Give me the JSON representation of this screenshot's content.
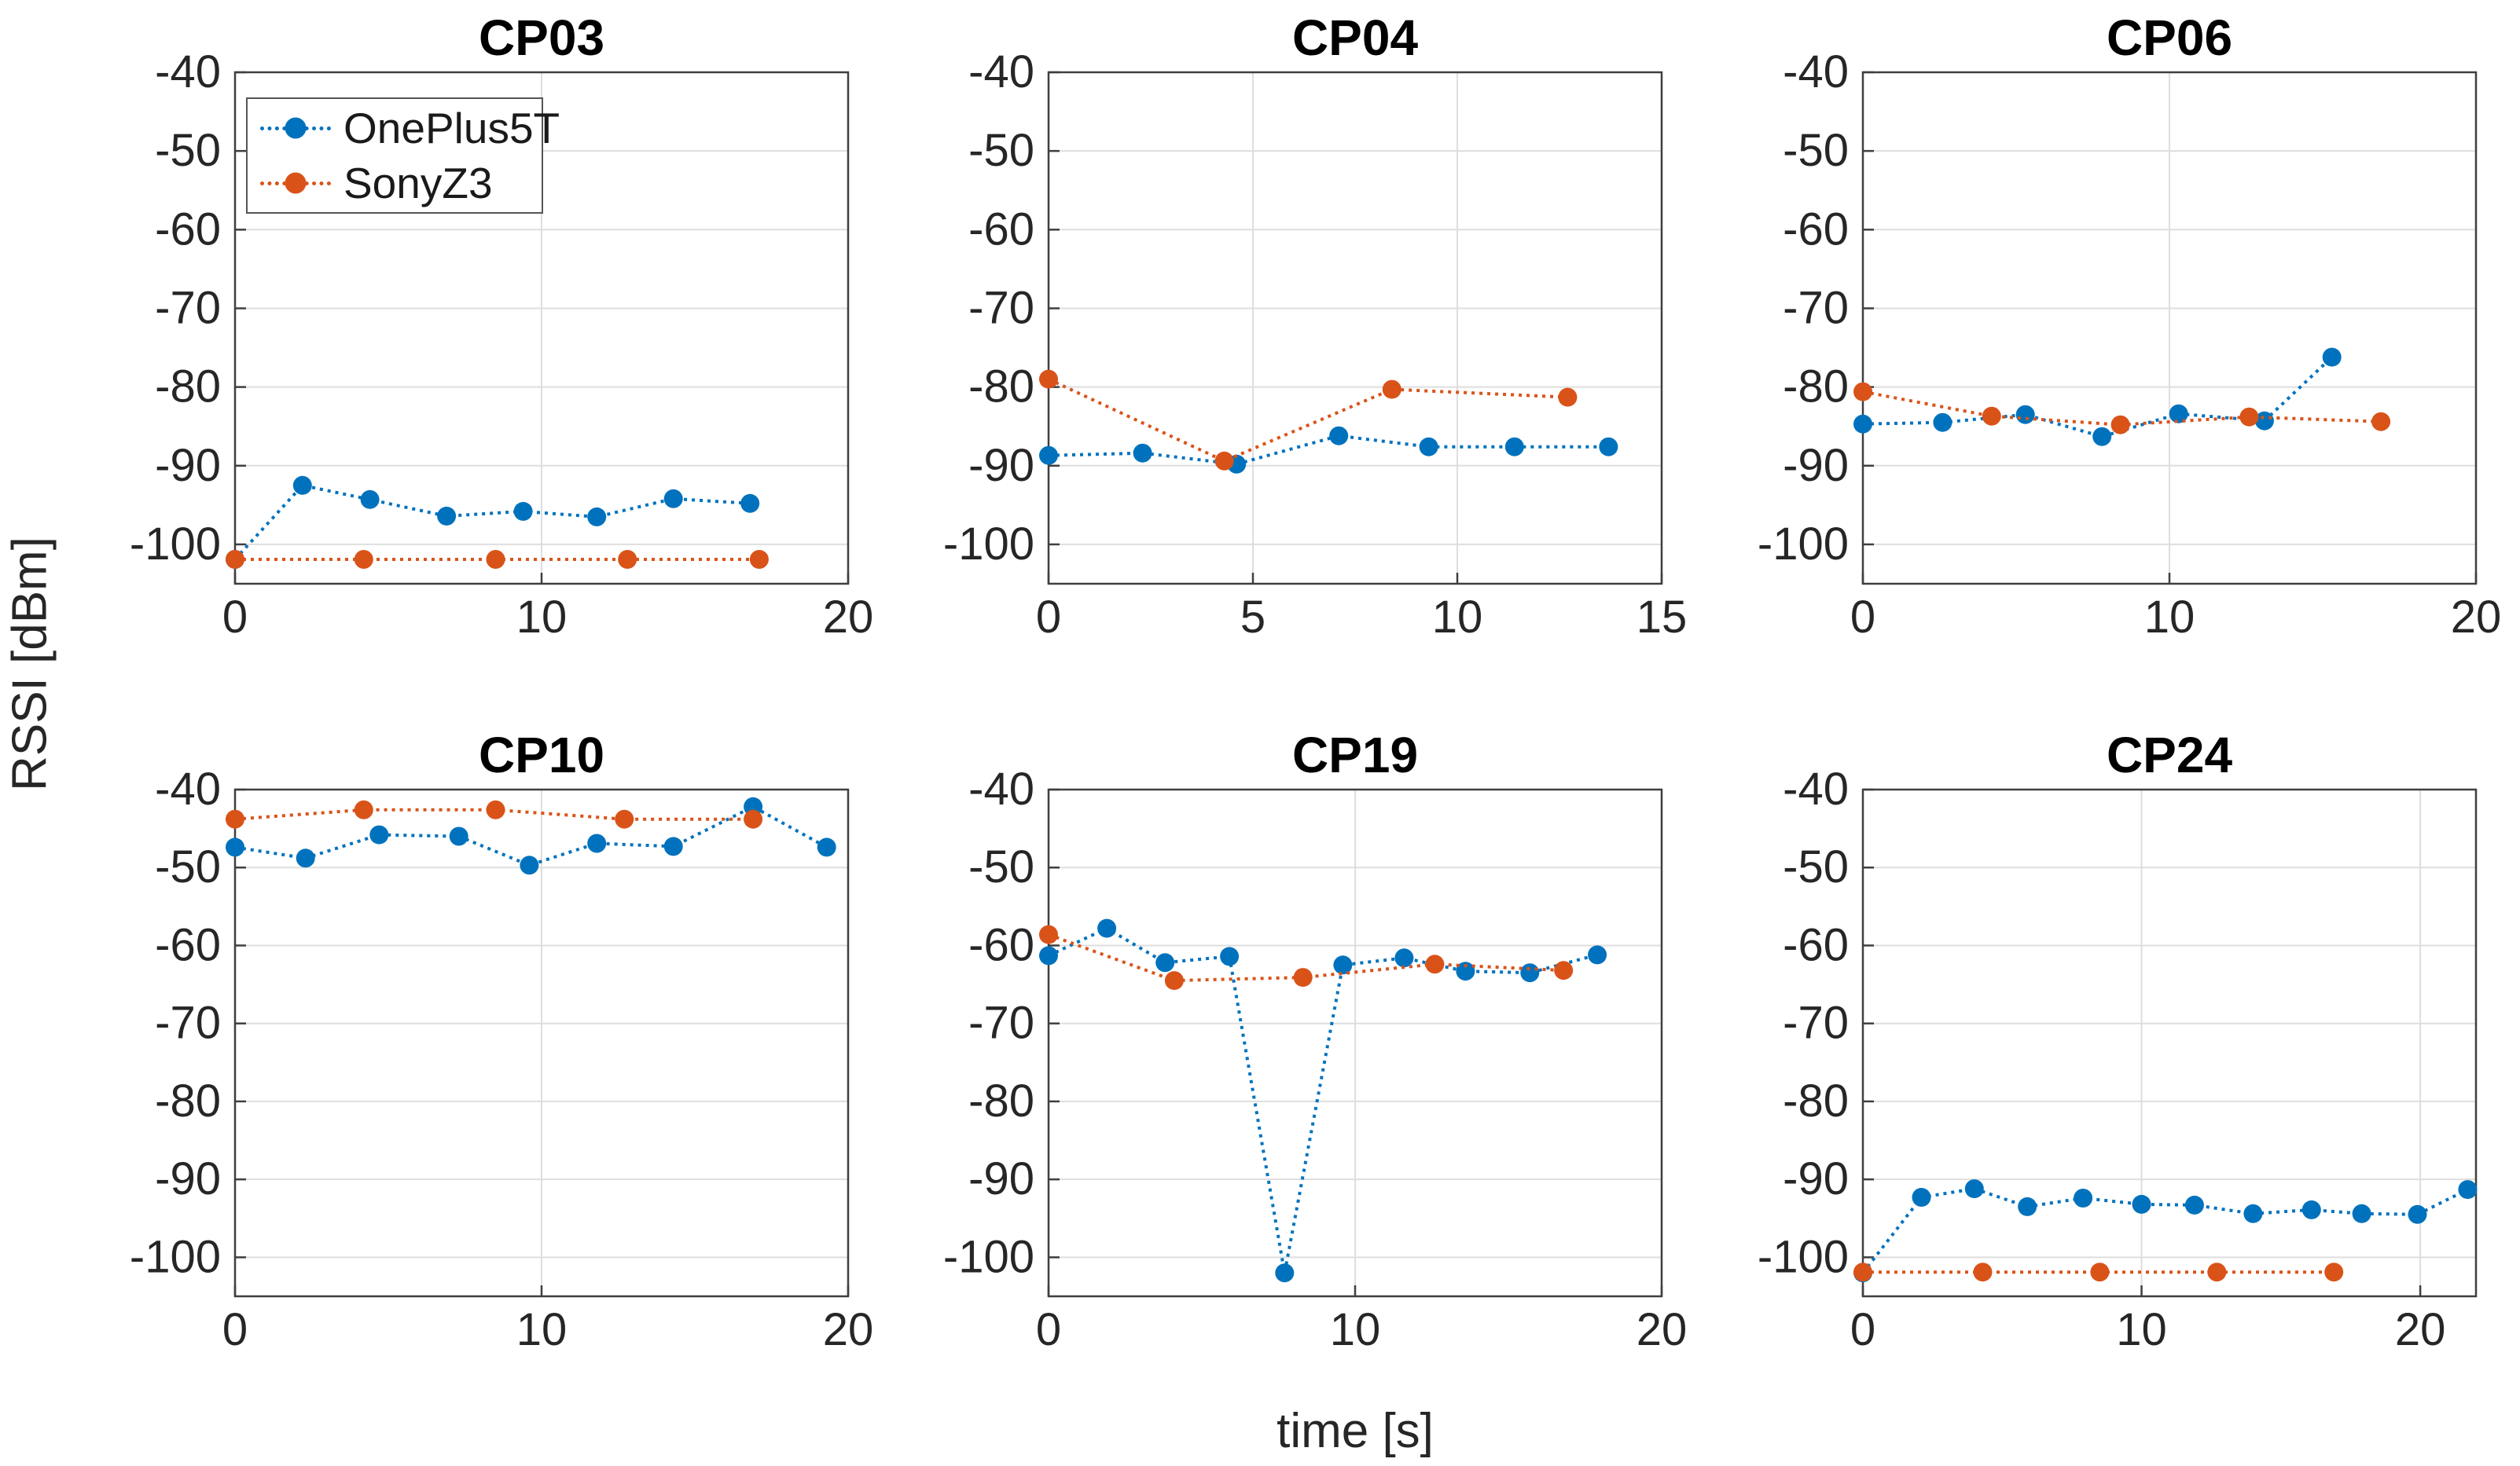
{
  "figure": {
    "y_axis_label": "RSSI [dBm]",
    "x_axis_label": "time [s]",
    "background_color": "#ffffff",
    "grid_color": "#dedede",
    "axis_color": "#3f3f3f",
    "tick_label_color": "#262626"
  },
  "legend": {
    "location": "top-left of first subplot",
    "entries": [
      {
        "label": "OnePlus5T",
        "color": "#0072BD",
        "marker": "circle",
        "line_style": "dotted"
      },
      {
        "label": "SonyZ3",
        "color": "#D95319",
        "marker": "circle",
        "line_style": "dotted"
      }
    ]
  },
  "chart_data": [
    {
      "type": "line",
      "title": "CP03",
      "xlim": [
        0,
        20
      ],
      "xticks": [
        0,
        10,
        20
      ],
      "ylim": [
        -105,
        -40
      ],
      "yticks": [
        -40,
        -50,
        -60,
        -70,
        -80,
        -90,
        -100
      ],
      "grid": true,
      "series": [
        {
          "name": "OnePlus5T",
          "color": "#0072BD",
          "line_style": "dotted",
          "marker": "circle",
          "points": [
            [
              0,
              -101.9
            ],
            [
              2.2,
              -92.5
            ],
            [
              4.4,
              -94.3
            ],
            [
              6.9,
              -96.4
            ],
            [
              9.4,
              -95.8
            ],
            [
              11.8,
              -96.5
            ],
            [
              14.3,
              -94.2
            ],
            [
              16.8,
              -94.8
            ]
          ]
        },
        {
          "name": "SonyZ3",
          "color": "#D95319",
          "line_style": "dotted",
          "marker": "circle",
          "points": [
            [
              0,
              -101.9
            ],
            [
              4.2,
              -101.9
            ],
            [
              8.5,
              -101.9
            ],
            [
              12.8,
              -101.9
            ],
            [
              17.1,
              -101.9
            ]
          ]
        }
      ]
    },
    {
      "type": "line",
      "title": "CP04",
      "xlim": [
        0,
        15
      ],
      "xticks": [
        0,
        5,
        10,
        15
      ],
      "ylim": [
        -105,
        -40
      ],
      "yticks": [
        -40,
        -50,
        -60,
        -70,
        -80,
        -90,
        -100
      ],
      "grid": true,
      "series": [
        {
          "name": "OnePlus5T",
          "color": "#0072BD",
          "line_style": "dotted",
          "marker": "circle",
          "points": [
            [
              0,
              -88.7
            ],
            [
              2.3,
              -88.4
            ],
            [
              4.6,
              -89.8
            ],
            [
              7.1,
              -86.2
            ],
            [
              9.3,
              -87.6
            ],
            [
              11.4,
              -87.6
            ],
            [
              13.7,
              -87.6
            ]
          ]
        },
        {
          "name": "SonyZ3",
          "color": "#D95319",
          "line_style": "dotted",
          "marker": "circle",
          "points": [
            [
              0,
              -79.0
            ],
            [
              4.3,
              -89.4
            ],
            [
              8.4,
              -80.3
            ],
            [
              12.7,
              -81.3
            ]
          ]
        }
      ]
    },
    {
      "type": "line",
      "title": "CP06",
      "xlim": [
        0,
        20
      ],
      "xticks": [
        0,
        10,
        20
      ],
      "ylim": [
        -105,
        -40
      ],
      "yticks": [
        -40,
        -50,
        -60,
        -70,
        -80,
        -90,
        -100
      ],
      "grid": true,
      "series": [
        {
          "name": "OnePlus5T",
          "color": "#0072BD",
          "line_style": "dotted",
          "marker": "circle",
          "points": [
            [
              0,
              -84.7
            ],
            [
              2.6,
              -84.5
            ],
            [
              5.3,
              -83.5
            ],
            [
              7.8,
              -86.3
            ],
            [
              10.3,
              -83.4
            ],
            [
              13.1,
              -84.3
            ],
            [
              15.3,
              -76.2
            ]
          ]
        },
        {
          "name": "SonyZ3",
          "color": "#D95319",
          "line_style": "dotted",
          "marker": "circle",
          "points": [
            [
              0,
              -80.6
            ],
            [
              4.2,
              -83.7
            ],
            [
              8.4,
              -84.8
            ],
            [
              12.6,
              -83.8
            ],
            [
              16.9,
              -84.4
            ]
          ]
        }
      ]
    },
    {
      "type": "line",
      "title": "CP10",
      "xlim": [
        0,
        20
      ],
      "xticks": [
        0,
        10,
        20
      ],
      "ylim": [
        -105,
        -40
      ],
      "yticks": [
        -40,
        -50,
        -60,
        -70,
        -80,
        -90,
        -100
      ],
      "grid": true,
      "series": [
        {
          "name": "OnePlus5T",
          "color": "#0072BD",
          "line_style": "dotted",
          "marker": "circle",
          "points": [
            [
              0,
              -47.4
            ],
            [
              2.3,
              -48.8
            ],
            [
              4.7,
              -45.8
            ],
            [
              7.3,
              -46.0
            ],
            [
              9.6,
              -49.7
            ],
            [
              11.8,
              -46.9
            ],
            [
              14.3,
              -47.3
            ],
            [
              16.9,
              -42.2
            ],
            [
              19.3,
              -47.4
            ]
          ]
        },
        {
          "name": "SonyZ3",
          "color": "#D95319",
          "line_style": "dotted",
          "marker": "circle",
          "points": [
            [
              0,
              -43.8
            ],
            [
              4.2,
              -42.6
            ],
            [
              8.5,
              -42.6
            ],
            [
              12.7,
              -43.8
            ],
            [
              16.9,
              -43.8
            ]
          ]
        }
      ]
    },
    {
      "type": "line",
      "title": "CP19",
      "xlim": [
        0,
        20
      ],
      "xticks": [
        0,
        10,
        20
      ],
      "ylim": [
        -105,
        -40
      ],
      "yticks": [
        -40,
        -50,
        -60,
        -70,
        -80,
        -90,
        -100
      ],
      "grid": true,
      "series": [
        {
          "name": "OnePlus5T",
          "color": "#0072BD",
          "line_style": "dotted",
          "marker": "circle",
          "points": [
            [
              0,
              -61.3
            ],
            [
              1.9,
              -57.8
            ],
            [
              3.8,
              -62.2
            ],
            [
              5.9,
              -61.4
            ],
            [
              7.7,
              -102.0
            ],
            [
              9.6,
              -62.5
            ],
            [
              11.6,
              -61.6
            ],
            [
              13.6,
              -63.3
            ],
            [
              15.7,
              -63.5
            ],
            [
              17.9,
              -61.2
            ]
          ]
        },
        {
          "name": "SonyZ3",
          "color": "#D95319",
          "line_style": "dotted",
          "marker": "circle",
          "points": [
            [
              0,
              -58.6
            ],
            [
              4.1,
              -64.5
            ],
            [
              8.3,
              -64.1
            ],
            [
              12.6,
              -62.4
            ],
            [
              16.8,
              -63.2
            ]
          ]
        }
      ]
    },
    {
      "type": "line",
      "title": "CP24",
      "xlim": [
        0,
        22
      ],
      "xticks": [
        0,
        10,
        20
      ],
      "ylim": [
        -105,
        -40
      ],
      "yticks": [
        -40,
        -50,
        -60,
        -70,
        -80,
        -90,
        -100
      ],
      "grid": true,
      "series": [
        {
          "name": "OnePlus5T",
          "color": "#0072BD",
          "line_style": "dotted",
          "marker": "circle",
          "points": [
            [
              0,
              -102.0
            ],
            [
              2.1,
              -92.3
            ],
            [
              4.0,
              -91.2
            ],
            [
              5.9,
              -93.5
            ],
            [
              7.9,
              -92.4
            ],
            [
              10.0,
              -93.2
            ],
            [
              11.9,
              -93.3
            ],
            [
              14.0,
              -94.4
            ],
            [
              16.1,
              -93.9
            ],
            [
              17.9,
              -94.4
            ],
            [
              19.9,
              -94.5
            ],
            [
              21.7,
              -91.3
            ]
          ]
        },
        {
          "name": "SonyZ3",
          "color": "#D95319",
          "line_style": "dotted",
          "marker": "circle",
          "points": [
            [
              0,
              -101.9
            ],
            [
              4.3,
              -101.9
            ],
            [
              8.5,
              -101.9
            ],
            [
              12.7,
              -101.9
            ],
            [
              16.9,
              -101.9
            ]
          ]
        }
      ]
    }
  ]
}
